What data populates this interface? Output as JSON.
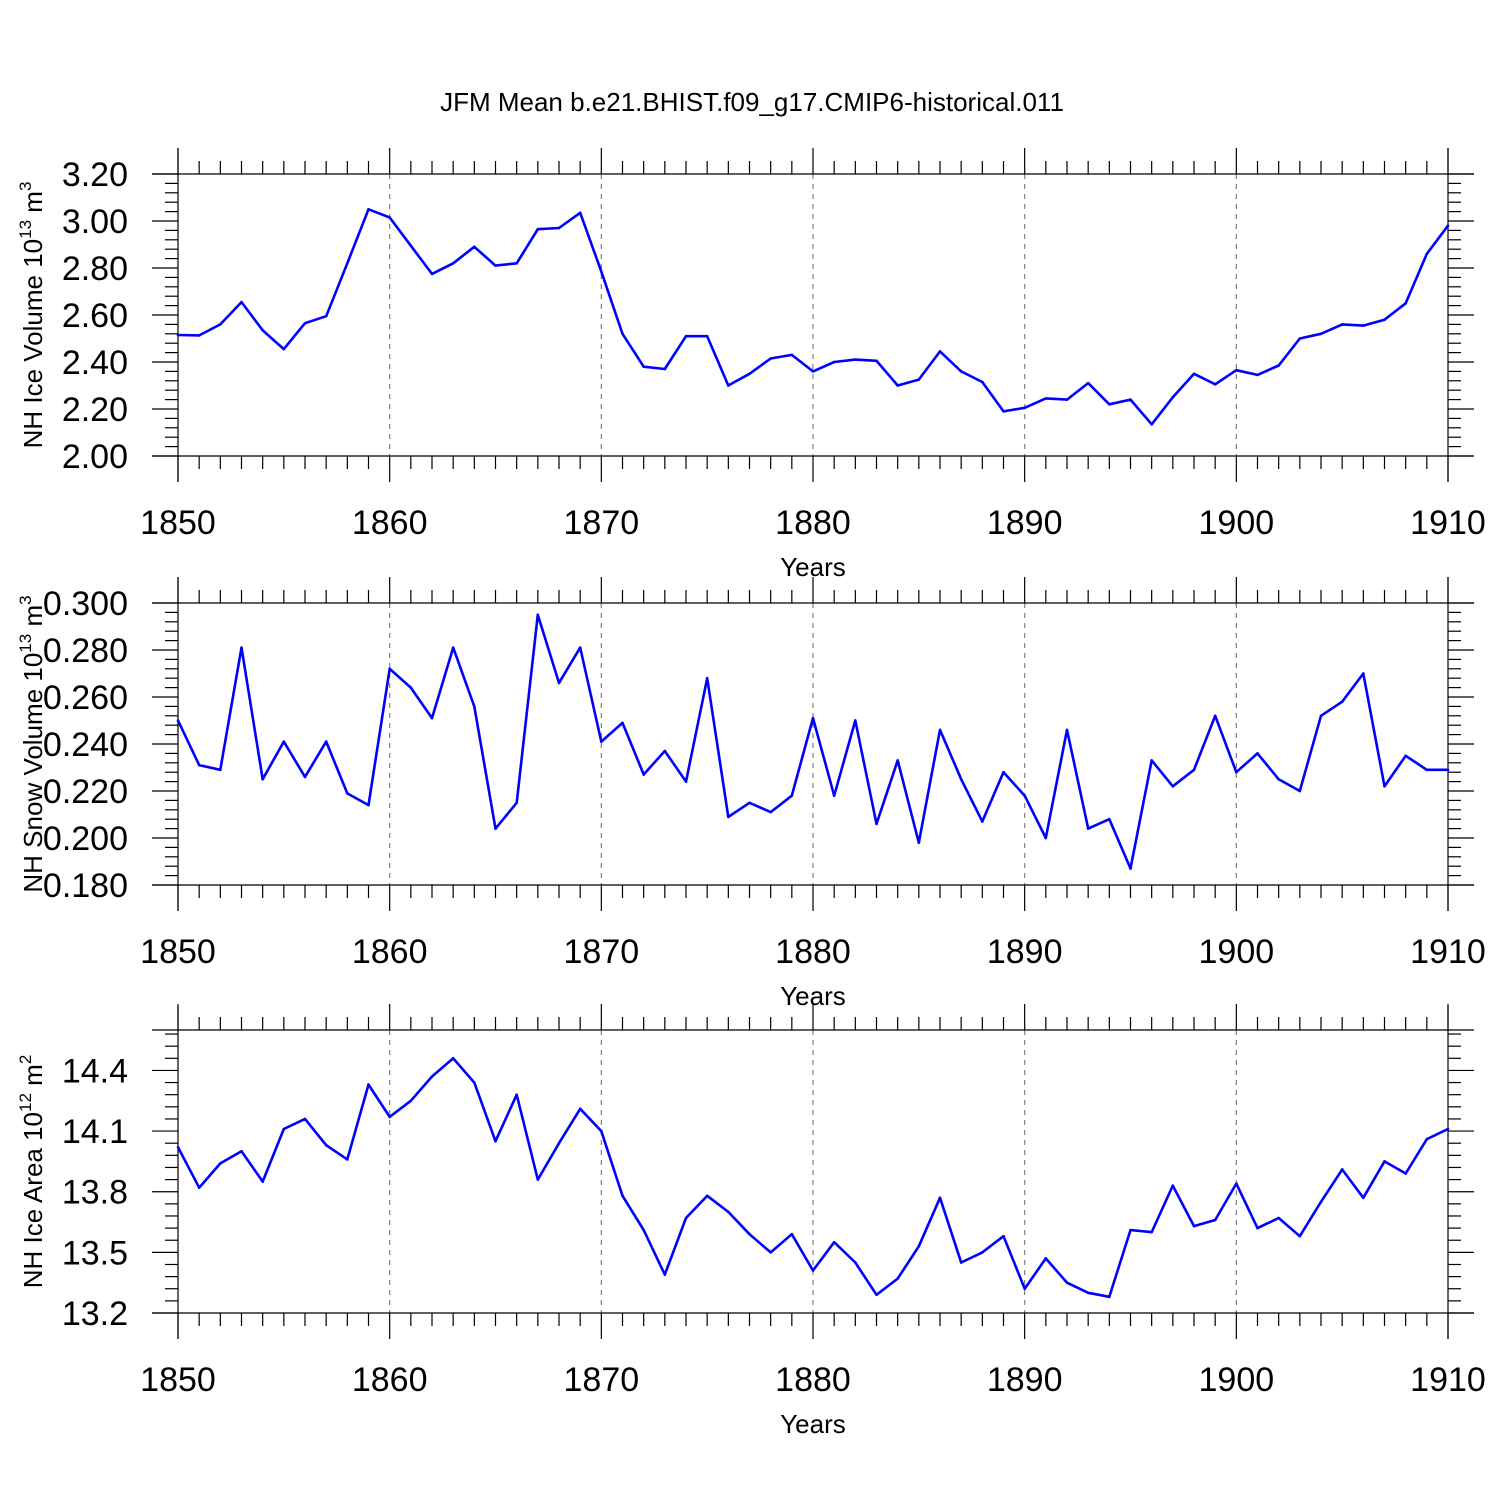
{
  "title": "JFM Mean b.e21.BHIST.f09_g17.CMIP6-historical.011",
  "colors": {
    "line": "#0000ff",
    "axis": "#000000",
    "grid": "#808080"
  },
  "chart_data": [
    {
      "type": "line",
      "name": "ice-volume",
      "xlabel": "Years",
      "ylabel_main": "NH Ice Volume 10",
      "ylabel_exp": "13",
      "ylabel_unit": " m",
      "ylabel_unit_exp": "3",
      "xlim": [
        1850,
        1910
      ],
      "ylim": [
        2.0,
        3.2
      ],
      "x_ticks": [
        1850,
        1860,
        1870,
        1880,
        1890,
        1900,
        1910
      ],
      "x_tick_labels": [
        "1850",
        "1860",
        "1870",
        "1880",
        "1890",
        "1900",
        "1910"
      ],
      "y_ticks": [
        2.0,
        2.2,
        2.4,
        2.6,
        2.8,
        3.0,
        3.2
      ],
      "y_tick_labels": [
        "2.00",
        "2.20",
        "2.40",
        "2.60",
        "2.80",
        "3.00",
        "3.20"
      ],
      "x": [
        1850,
        1851,
        1852,
        1853,
        1854,
        1855,
        1856,
        1857,
        1858,
        1859,
        1860,
        1861,
        1862,
        1863,
        1864,
        1865,
        1866,
        1867,
        1868,
        1869,
        1870,
        1871,
        1872,
        1873,
        1874,
        1875,
        1876,
        1877,
        1878,
        1879,
        1880,
        1881,
        1882,
        1883,
        1884,
        1885,
        1886,
        1887,
        1888,
        1889,
        1890,
        1891,
        1892,
        1893,
        1894,
        1895,
        1896,
        1897,
        1898,
        1899,
        1900,
        1901,
        1902,
        1903,
        1904,
        1905,
        1906,
        1907,
        1908,
        1909,
        1910
      ],
      "values": [
        2.515,
        2.513,
        2.56,
        2.655,
        2.535,
        2.455,
        2.565,
        2.595,
        2.82,
        3.05,
        3.015,
        2.895,
        2.775,
        2.82,
        2.89,
        2.81,
        2.82,
        2.965,
        2.97,
        3.035,
        2.785,
        2.52,
        2.38,
        2.37,
        2.51,
        2.51,
        2.3,
        2.35,
        2.415,
        2.43,
        2.36,
        2.4,
        2.41,
        2.405,
        2.3,
        2.325,
        2.445,
        2.36,
        2.315,
        2.19,
        2.205,
        2.245,
        2.24,
        2.31,
        2.22,
        2.24,
        2.135,
        2.25,
        2.35,
        2.305,
        2.365,
        2.345,
        2.385,
        2.5,
        2.52,
        2.56,
        2.555,
        2.58,
        2.65,
        2.86,
        2.98
      ]
    },
    {
      "type": "line",
      "name": "snow-volume",
      "xlabel": "Years",
      "ylabel_main": "NH Snow Volume 10",
      "ylabel_exp": "13",
      "ylabel_unit": " m",
      "ylabel_unit_exp": "3",
      "xlim": [
        1850,
        1910
      ],
      "ylim": [
        0.18,
        0.3
      ],
      "x_ticks": [
        1850,
        1860,
        1870,
        1880,
        1890,
        1900,
        1910
      ],
      "x_tick_labels": [
        "1850",
        "1860",
        "1870",
        "1880",
        "1890",
        "1900",
        "1910"
      ],
      "y_ticks": [
        0.18,
        0.2,
        0.22,
        0.24,
        0.26,
        0.28,
        0.3
      ],
      "y_tick_labels": [
        "0.180",
        "0.200",
        "0.220",
        "0.240",
        "0.260",
        "0.280",
        "0.300"
      ],
      "x": [
        1850,
        1851,
        1852,
        1853,
        1854,
        1855,
        1856,
        1857,
        1858,
        1859,
        1860,
        1861,
        1862,
        1863,
        1864,
        1865,
        1866,
        1867,
        1868,
        1869,
        1870,
        1871,
        1872,
        1873,
        1874,
        1875,
        1876,
        1877,
        1878,
        1879,
        1880,
        1881,
        1882,
        1883,
        1884,
        1885,
        1886,
        1887,
        1888,
        1889,
        1890,
        1891,
        1892,
        1893,
        1894,
        1895,
        1896,
        1897,
        1898,
        1899,
        1900,
        1901,
        1902,
        1903,
        1904,
        1905,
        1906,
        1907,
        1908,
        1909,
        1910
      ],
      "values": [
        0.25,
        0.231,
        0.229,
        0.281,
        0.225,
        0.241,
        0.226,
        0.241,
        0.219,
        0.214,
        0.272,
        0.264,
        0.251,
        0.281,
        0.256,
        0.204,
        0.215,
        0.295,
        0.266,
        0.281,
        0.241,
        0.249,
        0.227,
        0.237,
        0.224,
        0.268,
        0.209,
        0.215,
        0.211,
        0.218,
        0.251,
        0.218,
        0.25,
        0.206,
        0.233,
        0.198,
        0.246,
        0.225,
        0.207,
        0.228,
        0.218,
        0.2,
        0.246,
        0.204,
        0.208,
        0.187,
        0.233,
        0.222,
        0.229,
        0.252,
        0.228,
        0.236,
        0.225,
        0.22,
        0.252,
        0.258,
        0.27,
        0.222,
        0.235,
        0.229,
        0.229
      ]
    },
    {
      "type": "line",
      "name": "ice-area",
      "xlabel": "Years",
      "ylabel_main": "NH Ice Area 10",
      "ylabel_exp": "12",
      "ylabel_unit": " m",
      "ylabel_unit_exp": "2",
      "xlim": [
        1850,
        1910
      ],
      "ylim": [
        13.2,
        14.6
      ],
      "x_ticks": [
        1850,
        1860,
        1870,
        1880,
        1890,
        1900,
        1910
      ],
      "x_tick_labels": [
        "1850",
        "1860",
        "1870",
        "1880",
        "1890",
        "1900",
        "1910"
      ],
      "y_ticks": [
        13.2,
        13.5,
        13.8,
        14.1,
        14.4
      ],
      "y_tick_labels": [
        "13.2",
        "13.5",
        "13.8",
        "14.1",
        "14.4"
      ],
      "x": [
        1850,
        1851,
        1852,
        1853,
        1854,
        1855,
        1856,
        1857,
        1858,
        1859,
        1860,
        1861,
        1862,
        1863,
        1864,
        1865,
        1866,
        1867,
        1868,
        1869,
        1870,
        1871,
        1872,
        1873,
        1874,
        1875,
        1876,
        1877,
        1878,
        1879,
        1880,
        1881,
        1882,
        1883,
        1884,
        1885,
        1886,
        1887,
        1888,
        1889,
        1890,
        1891,
        1892,
        1893,
        1894,
        1895,
        1896,
        1897,
        1898,
        1899,
        1900,
        1901,
        1902,
        1903,
        1904,
        1905,
        1906,
        1907,
        1908,
        1909,
        1910
      ],
      "values": [
        14.02,
        13.82,
        13.94,
        14.0,
        13.85,
        14.11,
        14.16,
        14.03,
        13.96,
        14.33,
        14.17,
        14.25,
        14.37,
        14.46,
        14.34,
        14.05,
        14.28,
        13.86,
        14.04,
        14.21,
        14.1,
        13.78,
        13.61,
        13.39,
        13.67,
        13.78,
        13.7,
        13.59,
        13.5,
        13.59,
        13.41,
        13.55,
        13.45,
        13.29,
        13.37,
        13.53,
        13.77,
        13.45,
        13.5,
        13.58,
        13.32,
        13.47,
        13.35,
        13.3,
        13.28,
        13.61,
        13.6,
        13.83,
        13.63,
        13.66,
        13.84,
        13.62,
        13.67,
        13.58,
        13.75,
        13.91,
        13.77,
        13.95,
        13.89,
        14.06,
        14.11
      ]
    }
  ]
}
